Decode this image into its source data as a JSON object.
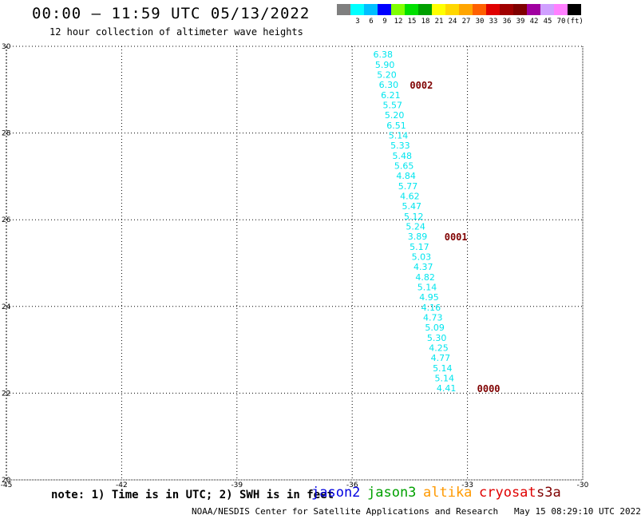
{
  "header": {
    "title": "00:00 — 11:59 UTC 05/13/2022",
    "subtitle": "12 hour collection of altimeter wave heights"
  },
  "legend": {
    "levels": [
      {
        "label": "",
        "color": "#7f7f7f"
      },
      {
        "label": "3",
        "color": "#00ffff"
      },
      {
        "label": "6",
        "color": "#00bfff"
      },
      {
        "label": "9",
        "color": "#0000ff"
      },
      {
        "label": "12",
        "color": "#7fff00"
      },
      {
        "label": "15",
        "color": "#00e000"
      },
      {
        "label": "18",
        "color": "#00a000"
      },
      {
        "label": "21",
        "color": "#ffff00"
      },
      {
        "label": "24",
        "color": "#ffd700"
      },
      {
        "label": "27",
        "color": "#ffa500"
      },
      {
        "label": "30",
        "color": "#ff6000"
      },
      {
        "label": "33",
        "color": "#e00000"
      },
      {
        "label": "36",
        "color": "#a00000"
      },
      {
        "label": "39",
        "color": "#7f0000"
      },
      {
        "label": "42",
        "color": "#a000a0"
      },
      {
        "label": "45",
        "color": "#d0a0ff"
      },
      {
        "label": "70",
        "color": "#ff80ff"
      },
      {
        "label": "(ft)",
        "color": "#000000"
      }
    ]
  },
  "map": {
    "lon_range": [
      -45,
      -30
    ],
    "lat_range": [
      20,
      30
    ],
    "lon_ticks": [
      "-45",
      "-42",
      "-39",
      "-36",
      "-33",
      "-30"
    ],
    "lat_ticks": [
      "30",
      "28",
      "26",
      "24",
      "22",
      "20"
    ],
    "lat_tick_values": [
      30,
      28,
      26,
      24,
      22,
      20
    ],
    "lon_tick_values": [
      -45,
      -42,
      -39,
      -36,
      -33,
      -30
    ],
    "swh_color": "#00e5ee",
    "time_label_color": "#7f0000",
    "swh_observations": [
      {
        "lon": -35.2,
        "lat": 29.82,
        "swh": "6.38"
      },
      {
        "lon": -35.15,
        "lat": 29.58,
        "swh": "5.90"
      },
      {
        "lon": -35.1,
        "lat": 29.35,
        "swh": "5.20"
      },
      {
        "lon": -35.05,
        "lat": 29.12,
        "swh": "6.30"
      },
      {
        "lon": -35.0,
        "lat": 28.88,
        "swh": "6.21"
      },
      {
        "lon": -34.95,
        "lat": 28.65,
        "swh": "5.57"
      },
      {
        "lon": -34.9,
        "lat": 28.42,
        "swh": "5.20"
      },
      {
        "lon": -34.85,
        "lat": 28.18,
        "swh": "6.51"
      },
      {
        "lon": -34.8,
        "lat": 27.95,
        "swh": "5.14"
      },
      {
        "lon": -34.75,
        "lat": 27.72,
        "swh": "5.33"
      },
      {
        "lon": -34.7,
        "lat": 27.48,
        "swh": "5.48"
      },
      {
        "lon": -34.65,
        "lat": 27.25,
        "swh": "5.65"
      },
      {
        "lon": -34.6,
        "lat": 27.02,
        "swh": "4.84"
      },
      {
        "lon": -34.55,
        "lat": 26.78,
        "swh": "5.77"
      },
      {
        "lon": -34.5,
        "lat": 26.55,
        "swh": "4.62"
      },
      {
        "lon": -34.45,
        "lat": 26.32,
        "swh": "5.47"
      },
      {
        "lon": -34.4,
        "lat": 26.08,
        "swh": "5.12"
      },
      {
        "lon": -34.35,
        "lat": 25.85,
        "swh": "5.24"
      },
      {
        "lon": -34.3,
        "lat": 25.62,
        "swh": "3.89"
      },
      {
        "lon": -34.25,
        "lat": 25.38,
        "swh": "5.17"
      },
      {
        "lon": -34.2,
        "lat": 25.15,
        "swh": "5.03"
      },
      {
        "lon": -34.15,
        "lat": 24.92,
        "swh": "4.37"
      },
      {
        "lon": -34.1,
        "lat": 24.68,
        "swh": "4.82"
      },
      {
        "lon": -34.05,
        "lat": 24.45,
        "swh": "5.14"
      },
      {
        "lon": -34.0,
        "lat": 24.22,
        "swh": "4.95"
      },
      {
        "lon": -33.95,
        "lat": 23.98,
        "swh": "4.16"
      },
      {
        "lon": -33.9,
        "lat": 23.75,
        "swh": "4.73"
      },
      {
        "lon": -33.85,
        "lat": 23.52,
        "swh": "5.09"
      },
      {
        "lon": -33.8,
        "lat": 23.28,
        "swh": "5.30"
      },
      {
        "lon": -33.75,
        "lat": 23.05,
        "swh": "4.25"
      },
      {
        "lon": -33.7,
        "lat": 22.82,
        "swh": "4.77"
      },
      {
        "lon": -33.65,
        "lat": 22.58,
        "swh": "5.14"
      },
      {
        "lon": -33.6,
        "lat": 22.35,
        "swh": "5.14"
      },
      {
        "lon": -33.55,
        "lat": 22.12,
        "swh": "4.41"
      }
    ],
    "time_labels": [
      {
        "lon": -34.5,
        "lat": 29.12,
        "text": "0002"
      },
      {
        "lon": -33.6,
        "lat": 25.62,
        "text": "0001"
      },
      {
        "lon": -32.75,
        "lat": 22.12,
        "text": "0000"
      }
    ]
  },
  "footer": {
    "note": "note: 1) Time is in UTC; 2) SWH is in feet",
    "satellites": [
      {
        "name": "jason2",
        "color": "#0000e0"
      },
      {
        "name": "jason3",
        "color": "#00a000"
      },
      {
        "name": "altika",
        "color": "#ff9900"
      },
      {
        "name": "cryosat",
        "color": "#e00000"
      },
      {
        "name": "s3a",
        "color": "#7f0000"
      }
    ],
    "credit": "NOAA/NESDIS Center for Satellite Applications and Research",
    "timestamp": "May 15 08:29:10 UTC 2022"
  }
}
